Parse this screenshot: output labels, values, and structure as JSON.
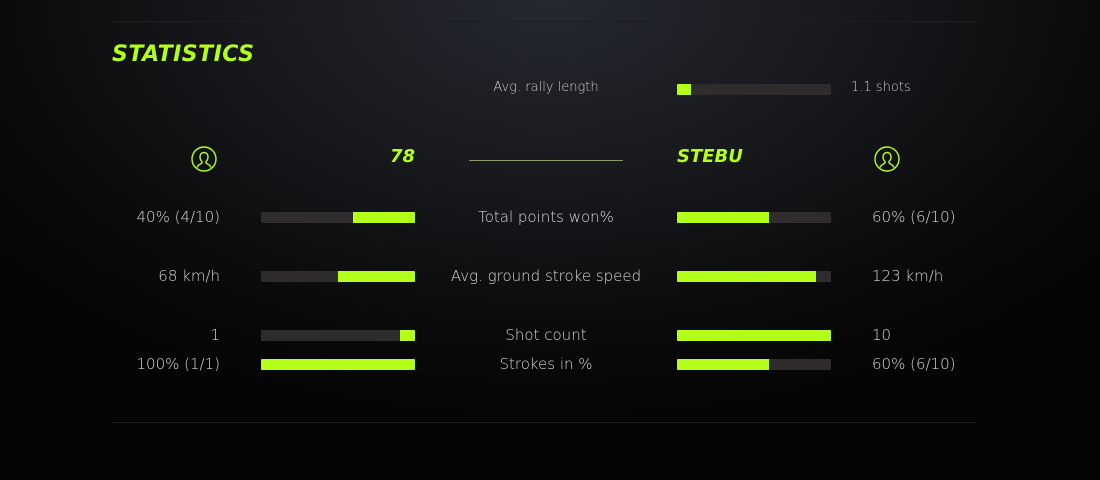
{
  "title": "STATISTICS",
  "accent": "#b4ff1a",
  "rally": {
    "label": "Avg. rally length",
    "value": "1.1 shots",
    "fill_pct": 9
  },
  "players": {
    "left": {
      "name": "78",
      "icon": "user-circle-icon"
    },
    "right": {
      "name": "STEBU",
      "icon": "user-circle-icon"
    }
  },
  "stats": [
    {
      "label": "Total points won%",
      "left": "40% (4/10)",
      "right": "60% (6/10)",
      "left_pct": 40,
      "right_pct": 60
    },
    {
      "label": "Avg. ground stroke speed",
      "left": "68 km/h",
      "right": "123 km/h",
      "left_pct": 50,
      "right_pct": 90
    },
    {
      "label": "Shot count",
      "left": "1",
      "right": "10",
      "left_pct": 10,
      "right_pct": 100
    },
    {
      "label": "Strokes in %",
      "left": "100% (1/1)",
      "right": "60% (6/10)",
      "left_pct": 100,
      "right_pct": 60
    }
  ]
}
